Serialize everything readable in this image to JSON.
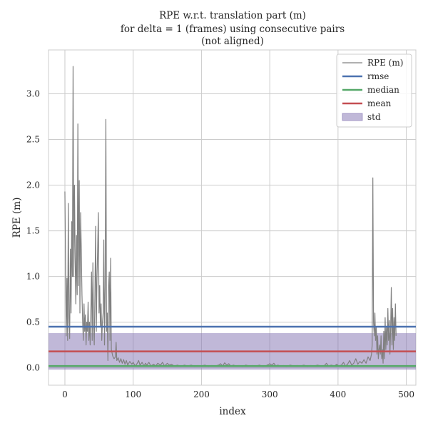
{
  "chart_data": {
    "type": "line",
    "title_lines": [
      "RPE w.r.t. translation part (m)",
      "for delta = 1 (frames) using consecutive pairs",
      "(not aligned)"
    ],
    "xlabel": "index",
    "ylabel": "RPE (m)",
    "xlim": [
      -24,
      514
    ],
    "ylim": [
      -0.19,
      3.48
    ],
    "xticks": [
      0,
      100,
      200,
      300,
      400,
      500
    ],
    "yticks": [
      0.0,
      0.5,
      1.0,
      1.5,
      2.0,
      2.5,
      3.0
    ],
    "xtick_labels": [
      "0",
      "100",
      "200",
      "300",
      "400",
      "500"
    ],
    "ytick_labels": [
      "0.0",
      "0.5",
      "1.0",
      "1.5",
      "2.0",
      "2.5",
      "3.0"
    ],
    "grid": true,
    "legend_placement": "top-right",
    "series": [
      {
        "name": "RPE (m)",
        "color": "#808080",
        "points": [
          [
            0,
            1.93
          ],
          [
            2,
            0.35
          ],
          [
            3,
            0.98
          ],
          [
            4,
            0.3
          ],
          [
            5,
            1.8
          ],
          [
            6,
            0.55
          ],
          [
            7,
            0.32
          ],
          [
            8,
            1.3
          ],
          [
            9,
            0.6
          ],
          [
            10,
            1.6
          ],
          [
            11,
            1.0
          ],
          [
            12,
            3.3
          ],
          [
            13,
            1.0
          ],
          [
            14,
            2.0
          ],
          [
            15,
            1.2
          ],
          [
            16,
            0.7
          ],
          [
            17,
            1.45
          ],
          [
            18,
            0.8
          ],
          [
            19,
            2.67
          ],
          [
            20,
            0.9
          ],
          [
            21,
            2.05
          ],
          [
            22,
            0.6
          ],
          [
            23,
            1.7
          ],
          [
            24,
            1.3
          ],
          [
            25,
            0.8
          ],
          [
            26,
            0.5
          ],
          [
            27,
            0.3
          ],
          [
            28,
            0.7
          ],
          [
            29,
            0.4
          ],
          [
            30,
            0.58
          ],
          [
            31,
            0.25
          ],
          [
            32,
            0.5
          ],
          [
            33,
            0.4
          ],
          [
            34,
            0.72
          ],
          [
            35,
            0.3
          ],
          [
            36,
            0.5
          ],
          [
            37,
            0.25
          ],
          [
            38,
            0.6
          ],
          [
            39,
            1.05
          ],
          [
            40,
            0.3
          ],
          [
            41,
            1.15
          ],
          [
            42,
            0.45
          ],
          [
            43,
            0.25
          ],
          [
            44,
            0.8
          ],
          [
            45,
            1.55
          ],
          [
            46,
            0.4
          ],
          [
            47,
            1.0
          ],
          [
            48,
            1.3
          ],
          [
            49,
            1.7
          ],
          [
            50,
            0.6
          ],
          [
            51,
            0.9
          ],
          [
            52,
            0.45
          ],
          [
            53,
            0.7
          ],
          [
            54,
            0.3
          ],
          [
            55,
            0.5
          ],
          [
            56,
            0.6
          ],
          [
            57,
            1.4
          ],
          [
            58,
            0.25
          ],
          [
            59,
            0.9
          ],
          [
            60,
            2.72
          ],
          [
            61,
            0.4
          ],
          [
            62,
            0.6
          ],
          [
            63,
            0.08
          ],
          [
            64,
            0.9
          ],
          [
            65,
            1.05
          ],
          [
            66,
            0.3
          ],
          [
            67,
            1.2
          ],
          [
            68,
            0.2
          ],
          [
            70,
            0.13
          ],
          [
            72,
            0.1
          ],
          [
            74,
            0.12
          ],
          [
            75,
            0.28
          ],
          [
            76,
            0.08
          ],
          [
            78,
            0.11
          ],
          [
            80,
            0.06
          ],
          [
            82,
            0.1
          ],
          [
            84,
            0.05
          ],
          [
            86,
            0.09
          ],
          [
            88,
            0.04
          ],
          [
            90,
            0.08
          ],
          [
            92,
            0.03
          ],
          [
            95,
            0.07
          ],
          [
            98,
            0.04
          ],
          [
            100,
            0.06
          ],
          [
            103,
            0.02
          ],
          [
            106,
            0.05
          ],
          [
            108,
            0.08
          ],
          [
            110,
            0.03
          ],
          [
            113,
            0.06
          ],
          [
            116,
            0.02
          ],
          [
            118,
            0.05
          ],
          [
            120,
            0.03
          ],
          [
            123,
            0.06
          ],
          [
            126,
            0.02
          ],
          [
            130,
            0.04
          ],
          [
            133,
            0.02
          ],
          [
            136,
            0.05
          ],
          [
            140,
            0.03
          ],
          [
            143,
            0.06
          ],
          [
            146,
            0.02
          ],
          [
            150,
            0.05
          ],
          [
            153,
            0.03
          ],
          [
            156,
            0.04
          ],
          [
            160,
            0.02
          ],
          [
            165,
            0.03
          ],
          [
            170,
            0.015
          ],
          [
            175,
            0.03
          ],
          [
            180,
            0.02
          ],
          [
            185,
            0.03
          ],
          [
            190,
            0.015
          ],
          [
            195,
            0.025
          ],
          [
            200,
            0.02
          ],
          [
            205,
            0.03
          ],
          [
            210,
            0.015
          ],
          [
            215,
            0.025
          ],
          [
            220,
            0.02
          ],
          [
            225,
            0.03
          ],
          [
            228,
            0.045
          ],
          [
            231,
            0.02
          ],
          [
            234,
            0.055
          ],
          [
            237,
            0.03
          ],
          [
            240,
            0.045
          ],
          [
            243,
            0.02
          ],
          [
            247,
            0.03
          ],
          [
            250,
            0.02
          ],
          [
            255,
            0.025
          ],
          [
            260,
            0.015
          ],
          [
            265,
            0.03
          ],
          [
            270,
            0.02
          ],
          [
            275,
            0.025
          ],
          [
            280,
            0.02
          ],
          [
            285,
            0.03
          ],
          [
            290,
            0.015
          ],
          [
            295,
            0.025
          ],
          [
            300,
            0.045
          ],
          [
            303,
            0.03
          ],
          [
            306,
            0.05
          ],
          [
            309,
            0.02
          ],
          [
            312,
            0.03
          ],
          [
            315,
            0.02
          ],
          [
            320,
            0.025
          ],
          [
            325,
            0.015
          ],
          [
            330,
            0.03
          ],
          [
            335,
            0.02
          ],
          [
            340,
            0.025
          ],
          [
            345,
            0.02
          ],
          [
            350,
            0.03
          ],
          [
            355,
            0.015
          ],
          [
            360,
            0.025
          ],
          [
            365,
            0.02
          ],
          [
            370,
            0.03
          ],
          [
            375,
            0.02
          ],
          [
            380,
            0.025
          ],
          [
            383,
            0.05
          ],
          [
            386,
            0.02
          ],
          [
            390,
            0.03
          ],
          [
            395,
            0.02
          ],
          [
            398,
            0.04
          ],
          [
            401,
            0.02
          ],
          [
            405,
            0.03
          ],
          [
            408,
            0.06
          ],
          [
            411,
            0.02
          ],
          [
            414,
            0.04
          ],
          [
            417,
            0.08
          ],
          [
            420,
            0.03
          ],
          [
            423,
            0.05
          ],
          [
            426,
            0.1
          ],
          [
            429,
            0.04
          ],
          [
            432,
            0.07
          ],
          [
            435,
            0.05
          ],
          [
            438,
            0.09
          ],
          [
            441,
            0.05
          ],
          [
            444,
            0.12
          ],
          [
            447,
            0.08
          ],
          [
            449,
            0.15
          ],
          [
            450,
            0.25
          ],
          [
            451,
            2.08
          ],
          [
            452,
            0.5
          ],
          [
            453,
            0.35
          ],
          [
            454,
            0.6
          ],
          [
            455,
            0.3
          ],
          [
            456,
            0.45
          ],
          [
            457,
            0.15
          ],
          [
            458,
            0.35
          ],
          [
            459,
            0.1
          ],
          [
            460,
            0.2
          ],
          [
            461,
            0.25
          ],
          [
            462,
            0.15
          ],
          [
            463,
            0.35
          ],
          [
            464,
            0.1
          ],
          [
            465,
            0.2
          ],
          [
            466,
            0.05
          ],
          [
            467,
            0.4
          ],
          [
            468,
            0.1
          ],
          [
            469,
            0.55
          ],
          [
            470,
            0.2
          ],
          [
            471,
            0.45
          ],
          [
            472,
            0.25
          ],
          [
            473,
            0.65
          ],
          [
            474,
            0.3
          ],
          [
            475,
            0.52
          ],
          [
            476,
            0.15
          ],
          [
            477,
            0.4
          ],
          [
            478,
            0.88
          ],
          [
            479,
            0.25
          ],
          [
            480,
            0.65
          ],
          [
            481,
            0.2
          ],
          [
            482,
            0.55
          ],
          [
            483,
            0.3
          ],
          [
            484,
            0.7
          ],
          [
            485,
            0.35
          ]
        ]
      }
    ],
    "stats": {
      "rmse": 0.45,
      "median": 0.02,
      "mean": 0.18,
      "std": 0.2
    },
    "legend": [
      {
        "label": "RPE (m)",
        "kind": "thin-line",
        "color": "#808080"
      },
      {
        "label": "rmse",
        "kind": "line",
        "color": "#4c72b0"
      },
      {
        "label": "median",
        "kind": "line",
        "color": "#55a868"
      },
      {
        "label": "mean",
        "kind": "line",
        "color": "#c44e52"
      },
      {
        "label": "std",
        "kind": "patch",
        "color": "#8172b2"
      }
    ]
  }
}
